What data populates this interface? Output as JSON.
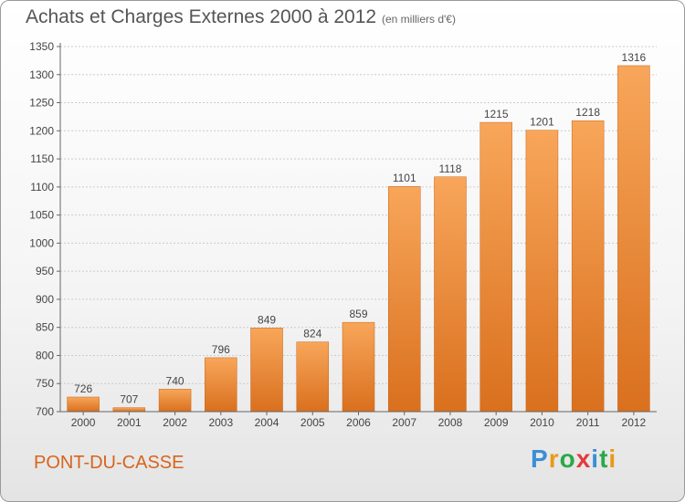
{
  "header": {
    "title": "Achats et Charges Externes 2000 à 2012",
    "unit_note": "(en milliers d'€)"
  },
  "footer": {
    "commune": "PONT-DU-CASSE",
    "brand_letters": [
      "P",
      "r",
      "o",
      "x",
      "i",
      "t",
      "i"
    ],
    "brand_colors": [
      "#3a8fd6",
      "#e89b16",
      "#2ba84a",
      "#e23b3b",
      "#3a8fd6",
      "#2ba84a",
      "#e89b16"
    ]
  },
  "colors": {
    "bar_top": "#f8a65a",
    "bar_bottom": "#d9701e",
    "axis_text": "#444444",
    "grid": "#cccccc",
    "commune_text": "#d8641c"
  },
  "chart_data": {
    "type": "bar",
    "categories": [
      "2000",
      "2001",
      "2002",
      "2003",
      "2004",
      "2005",
      "2006",
      "2007",
      "2008",
      "2009",
      "2010",
      "2011",
      "2012"
    ],
    "values": [
      726,
      707,
      740,
      796,
      849,
      824,
      859,
      1101,
      1118,
      1215,
      1201,
      1218,
      1316
    ],
    "title": "Achats et Charges Externes 2000 à 2012",
    "xlabel": "",
    "ylabel": "",
    "ylim": [
      700,
      1350
    ],
    "yticks": [
      700,
      750,
      800,
      850,
      900,
      950,
      1000,
      1050,
      1100,
      1150,
      1200,
      1250,
      1300,
      1350
    ],
    "grid": true,
    "legend": "none"
  }
}
